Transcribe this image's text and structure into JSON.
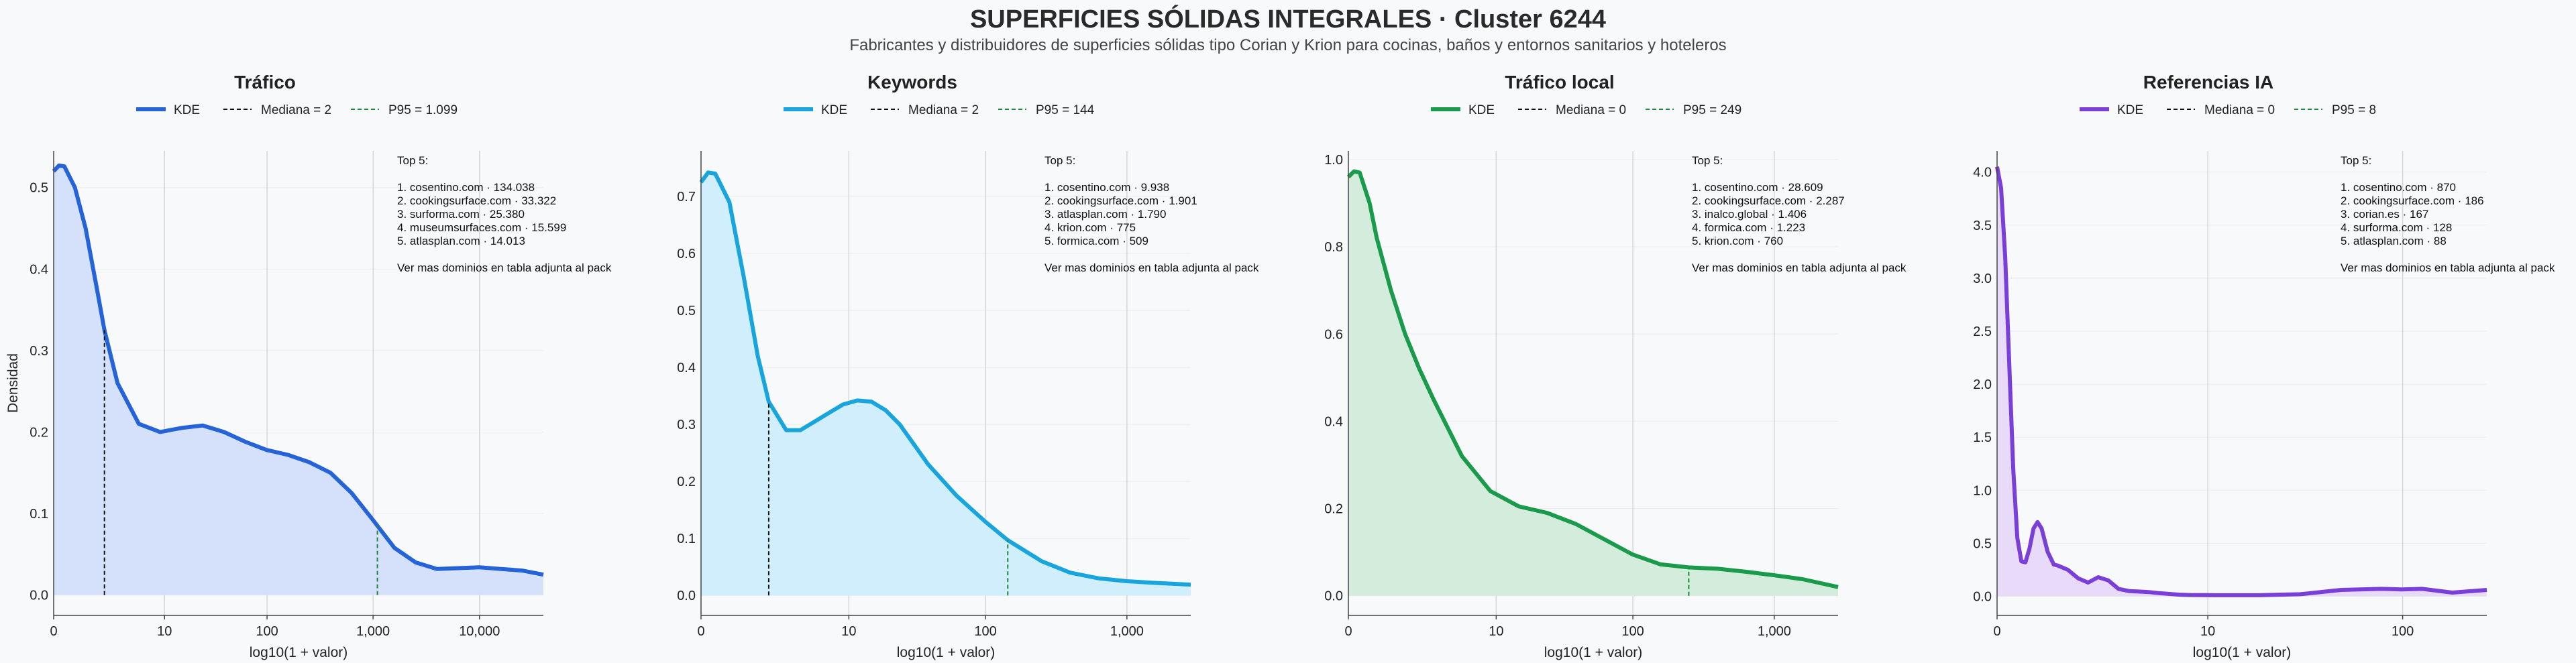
{
  "header": {
    "title": "SUPERFICIES SÓLIDAS INTEGRALES · Cluster 6244",
    "subtitle": "Fabricantes y distribuidores de superficies sólidas tipo Corian y Krion para cocinas, baños y entornos sanitarios y hoteleros"
  },
  "chart_data": [
    {
      "type": "area",
      "title": "Tráfico",
      "xlabel": "log10(1 + valor)",
      "ylabel": "Densidad",
      "color": "#2563d9",
      "fill": "#d5e0fa",
      "xlim": [
        0,
        4.6
      ],
      "ylim": [
        -0.025,
        0.545
      ],
      "xticks": [
        {
          "v": 0,
          "label": "0"
        },
        {
          "v": 1.0414,
          "label": "10"
        },
        {
          "v": 2.0043,
          "label": "100"
        },
        {
          "v": 3.0004,
          "label": "1,000"
        },
        {
          "v": 4.0,
          "label": "10,000"
        }
      ],
      "yticks": [
        {
          "v": 0.0,
          "label": "0.0"
        },
        {
          "v": 0.1,
          "label": "0.1"
        },
        {
          "v": 0.2,
          "label": "0.2"
        },
        {
          "v": 0.3,
          "label": "0.3"
        },
        {
          "v": 0.4,
          "label": "0.4"
        },
        {
          "v": 0.5,
          "label": "0.5"
        }
      ],
      "kde": {
        "x": [
          0,
          0.05,
          0.1,
          0.2,
          0.3,
          0.4,
          0.477,
          0.6,
          0.8,
          1.0,
          1.2,
          1.4,
          1.6,
          1.8,
          2.0,
          2.2,
          2.4,
          2.6,
          2.8,
          3.0,
          3.041,
          3.2,
          3.4,
          3.6,
          3.8,
          4.0,
          4.2,
          4.4,
          4.6
        ],
        "y": [
          0.52,
          0.527,
          0.526,
          0.5,
          0.45,
          0.38,
          0.325,
          0.26,
          0.21,
          0.2,
          0.205,
          0.208,
          0.2,
          0.188,
          0.178,
          0.172,
          0.163,
          0.15,
          0.125,
          0.092,
          0.085,
          0.058,
          0.04,
          0.032,
          0.033,
          0.034,
          0.032,
          0.03,
          0.025
        ]
      },
      "median": {
        "x": 0.477,
        "y": 0.325
      },
      "p95": {
        "x": 3.041,
        "y": 0.085
      },
      "legend": {
        "kde": "KDE",
        "median": "Mediana = 2",
        "p95": "P95 = 1.099"
      },
      "top5": {
        "heading": "Top 5:",
        "items": [
          "1. cosentino.com · 134.038",
          "2. cookingsurface.com · 33.322",
          "3. surforma.com · 25.380",
          "4. museumsurfaces.com · 15.599",
          "5. atlasplan.com · 14.013"
        ],
        "footer": "Ver mas dominios en tabla adjunta al pack"
      }
    },
    {
      "type": "area",
      "title": "Keywords",
      "xlabel": "log10(1 + valor)",
      "ylabel": "",
      "color": "#18a4dd",
      "fill": "#d0eefb",
      "xlim": [
        0,
        3.45
      ],
      "ylim": [
        -0.035,
        0.78
      ],
      "xticks": [
        {
          "v": 0,
          "label": "0"
        },
        {
          "v": 1.0414,
          "label": "10"
        },
        {
          "v": 2.0043,
          "label": "100"
        },
        {
          "v": 3.0004,
          "label": "1,000"
        }
      ],
      "yticks": [
        {
          "v": 0.0,
          "label": "0.0"
        },
        {
          "v": 0.1,
          "label": "0.1"
        },
        {
          "v": 0.2,
          "label": "0.2"
        },
        {
          "v": 0.3,
          "label": "0.3"
        },
        {
          "v": 0.4,
          "label": "0.4"
        },
        {
          "v": 0.5,
          "label": "0.5"
        },
        {
          "v": 0.6,
          "label": "0.6"
        },
        {
          "v": 0.7,
          "label": "0.7"
        }
      ],
      "kde": {
        "x": [
          0,
          0.05,
          0.1,
          0.2,
          0.3,
          0.4,
          0.477,
          0.6,
          0.7,
          0.8,
          0.9,
          1.0,
          1.1,
          1.2,
          1.3,
          1.4,
          1.5,
          1.6,
          1.8,
          2.0,
          2.161,
          2.4,
          2.6,
          2.8,
          3.0,
          3.2,
          3.45
        ],
        "y": [
          0.725,
          0.742,
          0.74,
          0.69,
          0.56,
          0.42,
          0.34,
          0.29,
          0.29,
          0.305,
          0.32,
          0.335,
          0.342,
          0.34,
          0.325,
          0.3,
          0.265,
          0.23,
          0.175,
          0.13,
          0.097,
          0.06,
          0.04,
          0.03,
          0.025,
          0.022,
          0.019
        ]
      },
      "median": {
        "x": 0.477,
        "y": 0.34
      },
      "p95": {
        "x": 2.161,
        "y": 0.097
      },
      "legend": {
        "kde": "KDE",
        "median": "Mediana = 2",
        "p95": "P95 = 144"
      },
      "top5": {
        "heading": "Top 5:",
        "items": [
          "1. cosentino.com · 9.938",
          "2. cookingsurface.com · 1.901",
          "3. atlasplan.com · 1.790",
          "4. krion.com · 775",
          "5. formica.com · 509"
        ],
        "footer": "Ver mas dominios en tabla adjunta al pack"
      }
    },
    {
      "type": "area",
      "title": "Tráfico local",
      "xlabel": "log10(1 + valor)",
      "ylabel": "",
      "color": "#1a9a4b",
      "fill": "#d3ecdb",
      "xlim": [
        0,
        3.45
      ],
      "ylim": [
        -0.045,
        1.02
      ],
      "xticks": [
        {
          "v": 0,
          "label": "0"
        },
        {
          "v": 1.0414,
          "label": "10"
        },
        {
          "v": 2.0043,
          "label": "100"
        },
        {
          "v": 3.0004,
          "label": "1,000"
        }
      ],
      "yticks": [
        {
          "v": 0.0,
          "label": "0.0"
        },
        {
          "v": 0.2,
          "label": "0.2"
        },
        {
          "v": 0.4,
          "label": "0.4"
        },
        {
          "v": 0.6,
          "label": "0.6"
        },
        {
          "v": 0.8,
          "label": "0.8"
        },
        {
          "v": 1.0,
          "label": "1.0"
        }
      ],
      "kde": {
        "x": [
          0,
          0.04,
          0.08,
          0.15,
          0.2,
          0.3,
          0.4,
          0.5,
          0.6,
          0.8,
          1.0,
          1.2,
          1.4,
          1.6,
          1.8,
          2.0,
          2.2,
          2.398,
          2.6,
          2.8,
          3.0,
          3.2,
          3.45
        ],
        "y": [
          0.96,
          0.973,
          0.97,
          0.9,
          0.82,
          0.7,
          0.6,
          0.52,
          0.45,
          0.32,
          0.24,
          0.205,
          0.19,
          0.165,
          0.13,
          0.095,
          0.072,
          0.065,
          0.062,
          0.055,
          0.047,
          0.038,
          0.02
        ]
      },
      "median": {
        "x": 0,
        "y": 0.96
      },
      "p95": {
        "x": 2.398,
        "y": 0.065
      },
      "legend": {
        "kde": "KDE",
        "median": "Mediana = 0",
        "p95": "P95 = 249"
      },
      "top5": {
        "heading": "Top 5:",
        "items": [
          "1. cosentino.com · 28.609",
          "2. cookingsurface.com · 2.287",
          "3. inalco.global · 1.406",
          "4. formica.com · 1.223",
          "5. krion.com · 760"
        ],
        "footer": "Ver mas dominios en tabla adjunta al pack"
      }
    },
    {
      "type": "area",
      "title": "Referencias IA",
      "xlabel": "log10(1 + valor)",
      "ylabel": "",
      "color": "#7b3fd9",
      "fill": "#e8dbf9",
      "xlim": [
        0,
        2.42
      ],
      "ylim": [
        -0.18,
        4.2
      ],
      "xticks": [
        {
          "v": 0,
          "label": "0"
        },
        {
          "v": 1.0414,
          "label": "10"
        },
        {
          "v": 2.0043,
          "label": "100"
        }
      ],
      "yticks": [
        {
          "v": 0.0,
          "label": "0.0"
        },
        {
          "v": 0.5,
          "label": "0.5"
        },
        {
          "v": 1.0,
          "label": "1.0"
        },
        {
          "v": 1.5,
          "label": "1.5"
        },
        {
          "v": 2.0,
          "label": "2.0"
        },
        {
          "v": 2.5,
          "label": "2.5"
        },
        {
          "v": 3.0,
          "label": "3.0"
        },
        {
          "v": 3.5,
          "label": "3.5"
        },
        {
          "v": 4.0,
          "label": "4.0"
        }
      ],
      "kde": {
        "x": [
          0,
          0.02,
          0.04,
          0.06,
          0.08,
          0.1,
          0.12,
          0.14,
          0.16,
          0.18,
          0.2,
          0.22,
          0.25,
          0.28,
          0.3,
          0.35,
          0.4,
          0.45,
          0.5,
          0.55,
          0.6,
          0.65,
          0.7,
          0.75,
          0.8,
          0.9,
          0.954,
          1.1,
          1.3,
          1.5,
          1.7,
          1.9,
          2.0,
          2.1,
          2.25,
          2.42
        ],
        "y": [
          4.05,
          3.85,
          3.2,
          2.2,
          1.2,
          0.55,
          0.33,
          0.32,
          0.45,
          0.64,
          0.7,
          0.64,
          0.42,
          0.3,
          0.29,
          0.25,
          0.17,
          0.13,
          0.18,
          0.15,
          0.07,
          0.05,
          0.045,
          0.04,
          0.03,
          0.015,
          0.012,
          0.01,
          0.01,
          0.02,
          0.06,
          0.07,
          0.065,
          0.07,
          0.035,
          0.06
        ]
      },
      "median": {
        "x": 0,
        "y": 4.05
      },
      "p95": {
        "x": 0.954,
        "y": 0.012
      },
      "legend": {
        "kde": "KDE",
        "median": "Mediana = 0",
        "p95": "P95 = 8"
      },
      "top5": {
        "heading": "Top 5:",
        "items": [
          "1. cosentino.com · 870",
          "2. cookingsurface.com · 186",
          "3. corian.es · 167",
          "4. surforma.com · 128",
          "5. atlasplan.com · 88"
        ],
        "footer": "Ver mas dominios en tabla adjunta al pack"
      }
    }
  ]
}
